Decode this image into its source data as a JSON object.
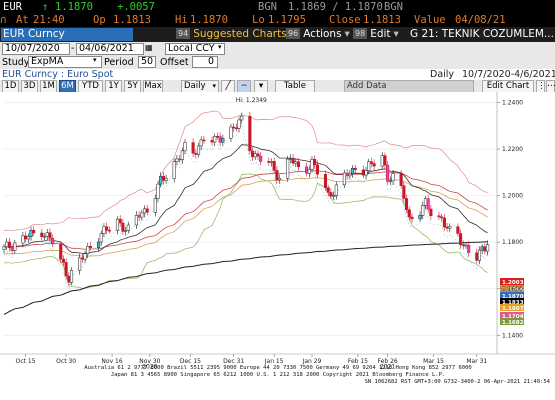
{
  "quote": {
    "ticker": "EUR",
    "last": "1.1870",
    "change": "+.0057",
    "bid_label": "BGN",
    "bid_value": "1.1869 / 1.1870",
    "ask_label": "BGN",
    "time": "21:40",
    "open_label": "Op",
    "open": "1.1813",
    "high_label": "Hi",
    "high": "1.1870",
    "low_label": "Lo",
    "low": "1.1795",
    "close_label": "Close",
    "close": "1.1813",
    "value_label": "Value",
    "value_date": "04/08/21",
    "at_label": "At"
  },
  "titlebar": {
    "ticker": "EUR Curncy",
    "suggested_num": "94",
    "suggested": "Suggested Charts",
    "actions_num": "96",
    "actions": "Actions",
    "edit_num": "98",
    "edit": "Edit",
    "news": "G 21: TEKNIK COZUMLEM..."
  },
  "date_row": {
    "start": "10/07/2020",
    "end": "04/06/2021",
    "currency": "Local CCY"
  },
  "study_row": {
    "study_label": "Study",
    "study": "ExpMA",
    "period_label": "Period",
    "period": "50",
    "offset_label": "Offset",
    "offset": "0"
  },
  "info_row": {
    "security": "EUR Curncy : Euro Spot",
    "frequency": "Daily",
    "range": "10/7/2020-4/6/2021"
  },
  "toolbar": {
    "ranges": [
      "1D",
      "3D",
      "1M",
      "6M",
      "YTD",
      "1Y",
      "5Y",
      "Max"
    ],
    "selected_range": "6M",
    "period": "Daily",
    "table": "Table",
    "add_data": "Add Data",
    "edit_chart": "Edit Chart"
  },
  "chart_data": {
    "type": "candlestick",
    "y_ticks": [
      "1.2400",
      "1.2200",
      "1.2000",
      "1.1800",
      "1.1600",
      "1.1400"
    ],
    "ylim": [
      1.132,
      1.2445
    ],
    "x_labels": [
      {
        "label": "Oct 15",
        "day": 8
      },
      {
        "label": "Oct 30",
        "day": 23
      },
      {
        "label": "Nov 16",
        "day": 40
      },
      {
        "label": "Nov 30",
        "day": 54
      },
      {
        "label": "Dec 15",
        "day": 69
      },
      {
        "label": "Dec 31",
        "day": 85
      },
      {
        "label": "Jan 15",
        "day": 100
      },
      {
        "label": "Jan 29",
        "day": 114
      },
      {
        "label": "Feb 15",
        "day": 131
      },
      {
        "label": "Feb 26",
        "day": 142
      },
      {
        "label": "Mar 15",
        "day": 159
      },
      {
        "label": "Mar 31",
        "day": 175
      }
    ],
    "year_labels": [
      {
        "label": "2020",
        "day": 54
      },
      {
        "label": "2021",
        "day": 142
      }
    ],
    "hi_label": "Hi: 1.2349",
    "price_tags": [
      {
        "value": "1.2003",
        "y": 1.2003,
        "color": "#d81e1e"
      },
      {
        "value": "1.1944",
        "y": 1.1944,
        "color": "#c98a3a"
      },
      {
        "value": "1.1870",
        "y": 1.187,
        "color": "#2b6fbe"
      },
      {
        "value": "1.1833",
        "y": 1.1833,
        "color": "#000000"
      },
      {
        "value": "1.1807",
        "y": 1.1807,
        "color": "#e8a020"
      },
      {
        "value": "1.1704",
        "y": 1.1704,
        "color": "#e05a8c"
      },
      {
        "value": "1.1682",
        "y": 1.1682,
        "color": "#7c9a3a"
      }
    ],
    "day_range": [
      0,
      181
    ],
    "anchors": [
      [
        0,
        1.177
      ],
      [
        6,
        1.181
      ],
      [
        10,
        1.183
      ],
      [
        14,
        1.185
      ],
      [
        18,
        1.18
      ],
      [
        20,
        1.173
      ],
      [
        22,
        1.17
      ],
      [
        24,
        1.165
      ],
      [
        27,
        1.17
      ],
      [
        30,
        1.175
      ],
      [
        34,
        1.182
      ],
      [
        38,
        1.185
      ],
      [
        42,
        1.189
      ],
      [
        46,
        1.185
      ],
      [
        50,
        1.192
      ],
      [
        54,
        1.195
      ],
      [
        58,
        1.206
      ],
      [
        61,
        1.21
      ],
      [
        64,
        1.216
      ],
      [
        67,
        1.22
      ],
      [
        70,
        1.218
      ],
      [
        74,
        1.225
      ],
      [
        78,
        1.223
      ],
      [
        82,
        1.227
      ],
      [
        86,
        1.23
      ],
      [
        88,
        1.232
      ],
      [
        90,
        1.222
      ],
      [
        94,
        1.216
      ],
      [
        98,
        1.214
      ],
      [
        102,
        1.208
      ],
      [
        106,
        1.216
      ],
      [
        110,
        1.21
      ],
      [
        114,
        1.214
      ],
      [
        118,
        1.206
      ],
      [
        120,
        1.2
      ],
      [
        124,
        1.205
      ],
      [
        128,
        1.21
      ],
      [
        131,
        1.212
      ],
      [
        134,
        1.211
      ],
      [
        138,
        1.215
      ],
      [
        140,
        1.217
      ],
      [
        142,
        1.208
      ],
      [
        145,
        1.207
      ],
      [
        148,
        1.2
      ],
      [
        150,
        1.19
      ],
      [
        153,
        1.192
      ],
      [
        156,
        1.196
      ],
      [
        159,
        1.192
      ],
      [
        162,
        1.19
      ],
      [
        165,
        1.184
      ],
      [
        168,
        1.183
      ],
      [
        172,
        1.176
      ],
      [
        175,
        1.173
      ],
      [
        178,
        1.178
      ],
      [
        181,
        1.187
      ]
    ]
  }
}
